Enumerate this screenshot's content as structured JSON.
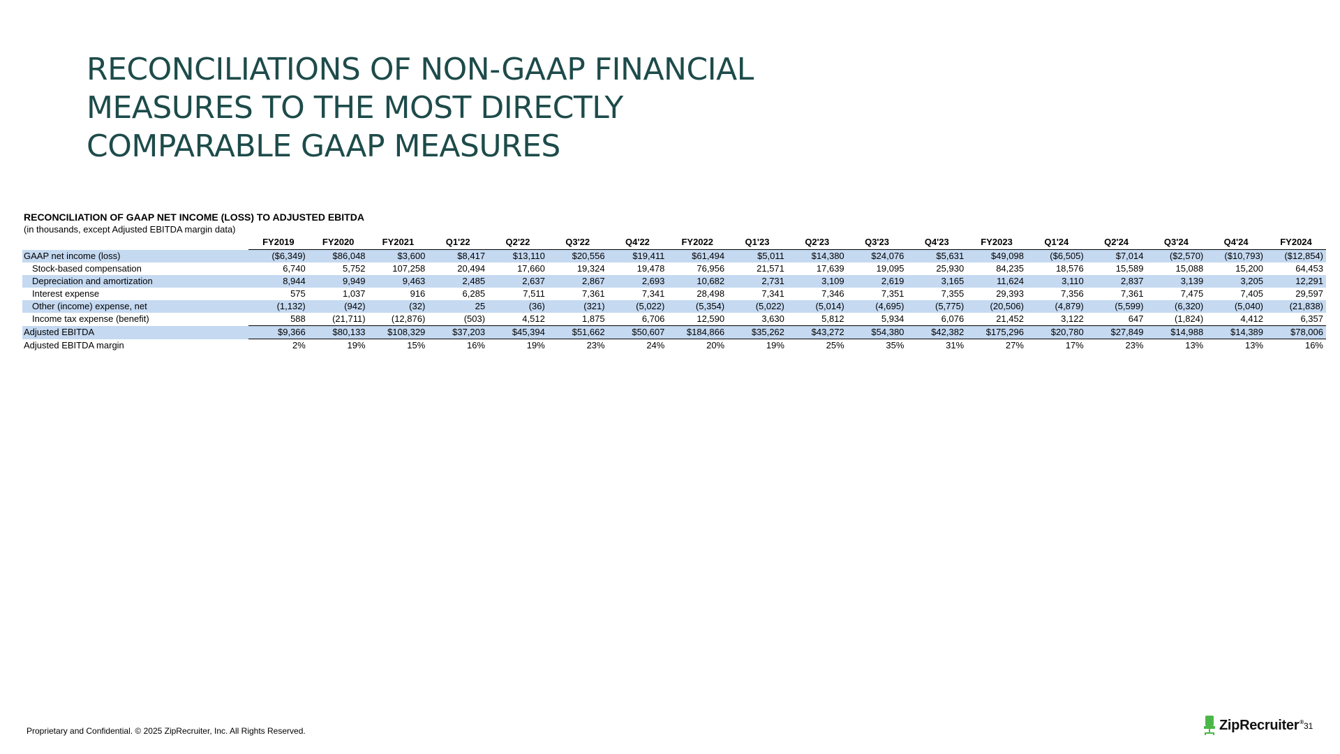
{
  "title": {
    "line1": "RECONCILIATIONS OF NON-GAAP FINANCIAL",
    "line2": "MEASURES TO THE MOST DIRECTLY",
    "line3": "COMPARABLE GAAP MEASURES"
  },
  "table": {
    "heading": "RECONCILIATION OF GAAP NET INCOME (LOSS) TO ADJUSTED EBITDA",
    "subheading": "(in thousands, except Adjusted EBITDA margin data)",
    "columns": [
      "FY2019",
      "FY2020",
      "FY2021",
      "Q1'22",
      "Q2'22",
      "Q3'22",
      "Q4'22",
      "FY2022",
      "Q1'23",
      "Q2'23",
      "Q3'23",
      "Q4'23",
      "FY2023",
      "Q1'24",
      "Q2'24",
      "Q3'24",
      "Q4'24",
      "FY2024"
    ],
    "rows": [
      {
        "label": "GAAP net income (loss)",
        "values": [
          "($6,349)",
          "$86,048",
          "$3,600",
          "$8,417",
          "$13,110",
          "$20,556",
          "$19,411",
          "$61,494",
          "$5,011",
          "$14,380",
          "$24,076",
          "$5,631",
          "$49,098",
          "($6,505)",
          "$7,014",
          "($2,570)",
          "($10,793)",
          "($12,854)"
        ]
      },
      {
        "label": "Stock-based compensation",
        "values": [
          "6,740",
          "5,752",
          "107,258",
          "20,494",
          "17,660",
          "19,324",
          "19,478",
          "76,956",
          "21,571",
          "17,639",
          "19,095",
          "25,930",
          "84,235",
          "18,576",
          "15,589",
          "15,088",
          "15,200",
          "64,453"
        ]
      },
      {
        "label": "Depreciation and amortization",
        "values": [
          "8,944",
          "9,949",
          "9,463",
          "2,485",
          "2,637",
          "2,867",
          "2,693",
          "10,682",
          "2,731",
          "3,109",
          "2,619",
          "3,165",
          "11,624",
          "3,110",
          "2,837",
          "3,139",
          "3,205",
          "12,291"
        ]
      },
      {
        "label": "Interest expense",
        "values": [
          "575",
          "1,037",
          "916",
          "6,285",
          "7,511",
          "7,361",
          "7,341",
          "28,498",
          "7,341",
          "7,346",
          "7,351",
          "7,355",
          "29,393",
          "7,356",
          "7,361",
          "7,475",
          "7,405",
          "29,597"
        ]
      },
      {
        "label": "Other (income) expense, net",
        "values": [
          "(1,132)",
          "(942)",
          "(32)",
          "25",
          "(36)",
          "(321)",
          "(5,022)",
          "(5,354)",
          "(5,022)",
          "(5,014)",
          "(4,695)",
          "(5,775)",
          "(20,506)",
          "(4,879)",
          "(5,599)",
          "(6,320)",
          "(5,040)",
          "(21,838)"
        ]
      },
      {
        "label": "Income tax expense (benefit)",
        "values": [
          "588",
          "(21,711)",
          "(12,876)",
          "(503)",
          "4,512",
          "1,875",
          "6,706",
          "12,590",
          "3,630",
          "5,812",
          "5,934",
          "6,076",
          "21,452",
          "3,122",
          "647",
          "(1,824)",
          "4,412",
          "6,357"
        ]
      },
      {
        "label": "Adjusted EBITDA",
        "values": [
          "$9,366",
          "$80,133",
          "$108,329",
          "$37,203",
          "$45,394",
          "$51,662",
          "$50,607",
          "$184,866",
          "$35,262",
          "$43,272",
          "$54,380",
          "$42,382",
          "$175,296",
          "$20,780",
          "$27,849",
          "$14,988",
          "$14,389",
          "$78,006"
        ]
      },
      {
        "label": "Adjusted EBITDA margin",
        "values": [
          "2%",
          "19%",
          "15%",
          "16%",
          "19%",
          "23%",
          "24%",
          "20%",
          "19%",
          "25%",
          "35%",
          "31%",
          "27%",
          "17%",
          "23%",
          "13%",
          "13%",
          "16%"
        ]
      }
    ]
  },
  "footer": {
    "confidential": "Proprietary and Confidential. © 2025 ZipRecruiter, Inc. All Rights Reserved.",
    "logo_text": "ZipRecruiter",
    "logo_mark": "®",
    "page_number": "31"
  },
  "colors": {
    "title": "#1d4b4a",
    "row_shade": "#c5d9f1",
    "logo_green": "#4cb748"
  }
}
